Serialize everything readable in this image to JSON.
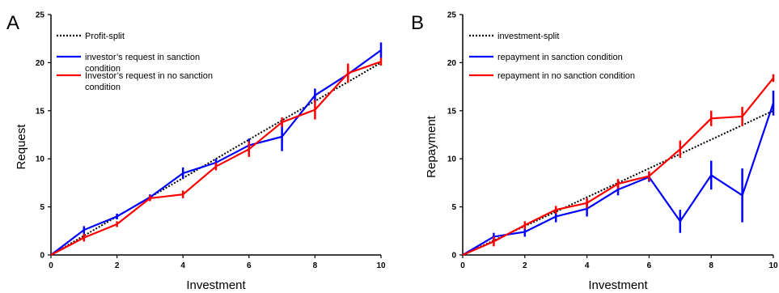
{
  "chart_data": [
    {
      "panel_label": "A",
      "type": "line",
      "xlabel": "Investment",
      "ylabel": "Request",
      "xlim": [
        0,
        10
      ],
      "ylim": [
        0,
        25
      ],
      "xticks": [
        0,
        2,
        4,
        6,
        8,
        10
      ],
      "yticks": [
        0,
        5,
        10,
        15,
        20,
        25
      ],
      "grid": false,
      "legend_position": "top-left",
      "series": [
        {
          "name": "Profit-split",
          "color": "#000000",
          "style": "dotted",
          "x": [
            0,
            10
          ],
          "y": [
            0,
            20
          ]
        },
        {
          "name": "investor’s request in sanction condition",
          "color": "#0000ff",
          "style": "solid",
          "x": [
            0,
            1,
            2,
            3,
            4,
            5,
            6,
            7,
            8,
            9,
            10
          ],
          "y": [
            0,
            2.6,
            4.0,
            6.0,
            8.5,
            9.6,
            11.4,
            12.3,
            16.6,
            18.8,
            21.3
          ],
          "err": [
            0,
            0.4,
            0.3,
            0.3,
            0.6,
            0.4,
            0.7,
            1.5,
            0.7,
            0.5,
            0.8
          ]
        },
        {
          "name": "Investor’s request in no sanction condition",
          "color": "#ff0000",
          "style": "solid",
          "x": [
            0,
            1,
            2,
            3,
            4,
            5,
            6,
            7,
            8,
            9,
            10
          ],
          "y": [
            0,
            1.8,
            3.2,
            5.9,
            6.3,
            9.2,
            11.0,
            13.8,
            15.1,
            18.9,
            20.1
          ],
          "err": [
            0,
            0.4,
            0.3,
            0.3,
            0.4,
            0.4,
            0.8,
            0.5,
            1.0,
            1.0,
            0.4
          ]
        }
      ]
    },
    {
      "panel_label": "B",
      "type": "line",
      "xlabel": "Investment",
      "ylabel": "Repayment",
      "xlim": [
        0,
        10
      ],
      "ylim": [
        0,
        25
      ],
      "xticks": [
        0,
        2,
        4,
        6,
        8,
        10
      ],
      "yticks": [
        0,
        5,
        10,
        15,
        20,
        25
      ],
      "grid": false,
      "legend_position": "top-left",
      "series": [
        {
          "name": "investment-split",
          "color": "#000000",
          "style": "dotted",
          "x": [
            0,
            10
          ],
          "y": [
            0,
            15
          ]
        },
        {
          "name": "repayment in sanction condition",
          "color": "#0000ff",
          "style": "solid",
          "x": [
            0,
            1,
            2,
            3,
            4,
            5,
            6,
            7,
            8,
            9,
            10
          ],
          "y": [
            0,
            1.9,
            2.4,
            4.0,
            4.8,
            6.8,
            8.1,
            3.5,
            8.3,
            6.2,
            15.8
          ],
          "err": [
            0,
            0.4,
            0.5,
            0.6,
            0.8,
            0.6,
            0.5,
            1.2,
            1.5,
            2.8,
            1.3
          ]
        },
        {
          "name": "repayment in no sanction condition",
          "color": "#ff0000",
          "style": "solid",
          "x": [
            0,
            1,
            2,
            3,
            4,
            5,
            6,
            7,
            8,
            9,
            10
          ],
          "y": [
            0,
            1.4,
            3.1,
            4.7,
            5.4,
            7.4,
            8.2,
            11.0,
            14.2,
            14.4,
            18.4
          ],
          "err": [
            0,
            0.5,
            0.4,
            0.4,
            0.5,
            0.5,
            0.5,
            0.9,
            0.8,
            1.0,
            0.4
          ]
        }
      ]
    }
  ]
}
